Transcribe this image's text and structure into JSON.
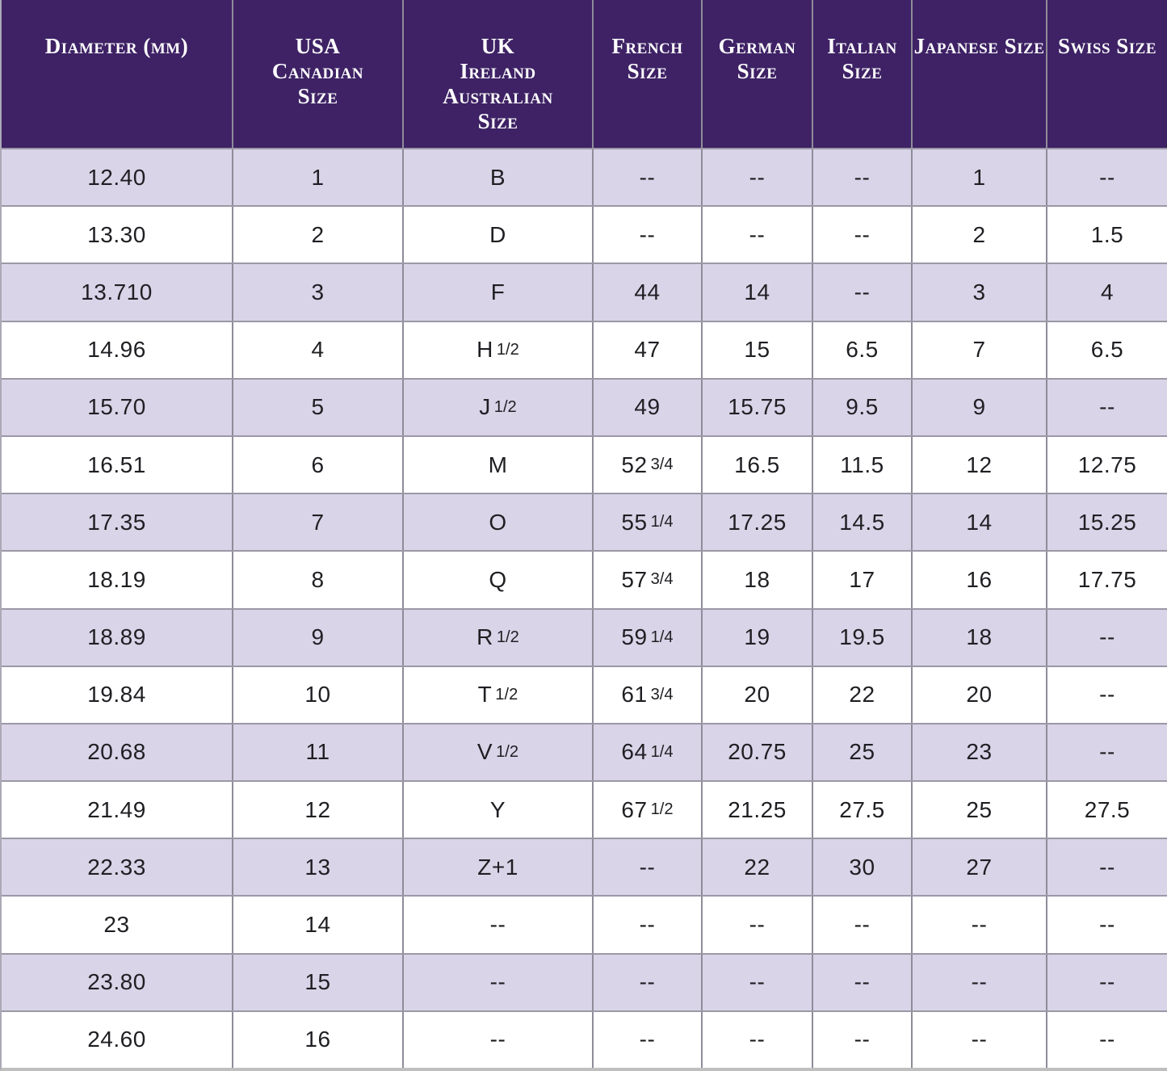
{
  "chart_data": {
    "type": "table",
    "title": "",
    "grid": true,
    "legend_position": "none",
    "columns": [
      "Diameter (mm)",
      "USA\nCanadian\nSize",
      "UK\nIreland\nAustralian\nSize",
      "French\nSize",
      "German\nSize",
      "Italian\nSize",
      "Japanese Size",
      "Swiss Size"
    ],
    "rows": [
      [
        "12.40",
        "1",
        "B",
        "--",
        "--",
        "--",
        "1",
        "--"
      ],
      [
        "13.30",
        "2",
        "D",
        "--",
        "--",
        "--",
        "2",
        "1.5"
      ],
      [
        "13.710",
        "3",
        "F",
        "44",
        "14",
        "--",
        "3",
        "4"
      ],
      [
        "14.96",
        "4",
        "H 1/2",
        "47",
        "15",
        "6.5",
        "7",
        "6.5"
      ],
      [
        "15.70",
        "5",
        "J 1/2",
        "49",
        "15.75",
        "9.5",
        "9",
        "--"
      ],
      [
        "16.51",
        "6",
        "M",
        "52 3/4",
        "16.5",
        "11.5",
        "12",
        "12.75"
      ],
      [
        "17.35",
        "7",
        "O",
        "55 1/4",
        "17.25",
        "14.5",
        "14",
        "15.25"
      ],
      [
        "18.19",
        "8",
        "Q",
        "57 3/4",
        "18",
        "17",
        "16",
        "17.75"
      ],
      [
        "18.89",
        "9",
        "R 1/2",
        "59 1/4",
        "19",
        "19.5",
        "18",
        "--"
      ],
      [
        "19.84",
        "10",
        "T 1/2",
        "61 3/4",
        "20",
        "22",
        "20",
        "--"
      ],
      [
        "20.68",
        "11",
        "V 1/2",
        "64 1/4",
        "20.75",
        "25",
        "23",
        "--"
      ],
      [
        "21.49",
        "12",
        "Y",
        "67 1/2",
        "21.25",
        "27.5",
        "25",
        "27.5"
      ],
      [
        "22.33",
        "13",
        "Z+1",
        "--",
        "22",
        "30",
        "27",
        "--"
      ],
      [
        "23",
        "14",
        "--",
        "--",
        "--",
        "--",
        "--",
        "--"
      ],
      [
        "23.80",
        "15",
        "--",
        "--",
        "--",
        "--",
        "--",
        "--"
      ],
      [
        "24.60",
        "16",
        "--",
        "--",
        "--",
        "--",
        "--",
        "--"
      ]
    ]
  },
  "colors": {
    "header_bg": "#3e2265",
    "header_text": "#ffffff",
    "row_alt_bg": "#d9d4e8",
    "row_bg": "#ffffff",
    "grid_line_vertical": "#8f8c99",
    "grid_line_horizontal": "#9b98a6",
    "body_text": "#1f1f23"
  }
}
